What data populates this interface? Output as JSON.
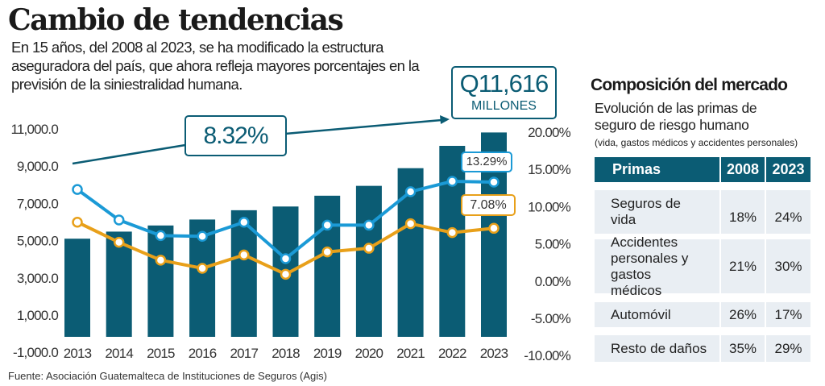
{
  "title": "Cambio de tendencias",
  "intro": "En 15 años, del 2008 al 2023, se ha modificado la estructura aseguradora del país, que ahora refleja mayores porcentajes en la previsión de la siniestralidad humana.",
  "source": "Fuente: Asociación Guatemalteca de Instituciones de Seguros (Agis)",
  "callouts": {
    "growth": "8.32%",
    "total_value": "Q11,616",
    "total_unit": "MILLONES",
    "blue_last": "13.29%",
    "orange_last": "7.08%"
  },
  "colors": {
    "bars": "#0b5c74",
    "line_blue": "#1b9ad6",
    "line_orange": "#e8a01a"
  },
  "chart_data": {
    "type": "bar+line",
    "categories": [
      "2013",
      "2014",
      "2015",
      "2016",
      "2017",
      "2018",
      "2019",
      "2020",
      "2021",
      "2022",
      "2023"
    ],
    "left_axis": {
      "ticks": [
        "11,000.0",
        "9,000.0",
        "7,000.0",
        "5,000.0",
        "3,000.0",
        "1,000.0",
        "-1,000.0"
      ],
      "range": [
        -1000,
        11000
      ]
    },
    "right_axis": {
      "ticks": [
        "20.00%",
        "15.00%",
        "10.00%",
        "5.00%",
        "0.00%",
        "-5.00%",
        "-10.00%"
      ],
      "range": [
        -10,
        20
      ]
    },
    "bars": [
      5100,
      5480,
      5810,
      6130,
      6630,
      6830,
      7410,
      7940,
      8890,
      10090,
      10810
    ],
    "series": [
      {
        "color": "#1b9ad6",
        "axis": "right",
        "values": [
          12.3,
          8.2,
          6.1,
          6.0,
          7.9,
          3.0,
          7.5,
          7.5,
          12.0,
          13.4,
          13.29
        ]
      },
      {
        "color": "#e8a01a",
        "axis": "right",
        "values": [
          7.9,
          5.2,
          2.8,
          1.7,
          3.5,
          0.9,
          3.9,
          4.4,
          7.7,
          6.5,
          7.08
        ]
      }
    ],
    "grid": false
  },
  "market": {
    "title": "Composición del mercado",
    "subtitle": "Evolución de las primas de seguro de riesgo humano",
    "note": "(vida, gastos médicos y accidentes personales)",
    "headers": [
      "Primas",
      "2008",
      "2023"
    ],
    "rows": [
      {
        "label": "Seguros de vida",
        "y2008": "18%",
        "y2023": "24%"
      },
      {
        "label": "Accidentes personales y gastos médicos",
        "y2008": "21%",
        "y2023": "30%"
      },
      {
        "label": "Automóvil",
        "y2008": "26%",
        "y2023": "17%"
      },
      {
        "label": "Resto de daños",
        "y2008": "35%",
        "y2023": "29%"
      }
    ]
  }
}
